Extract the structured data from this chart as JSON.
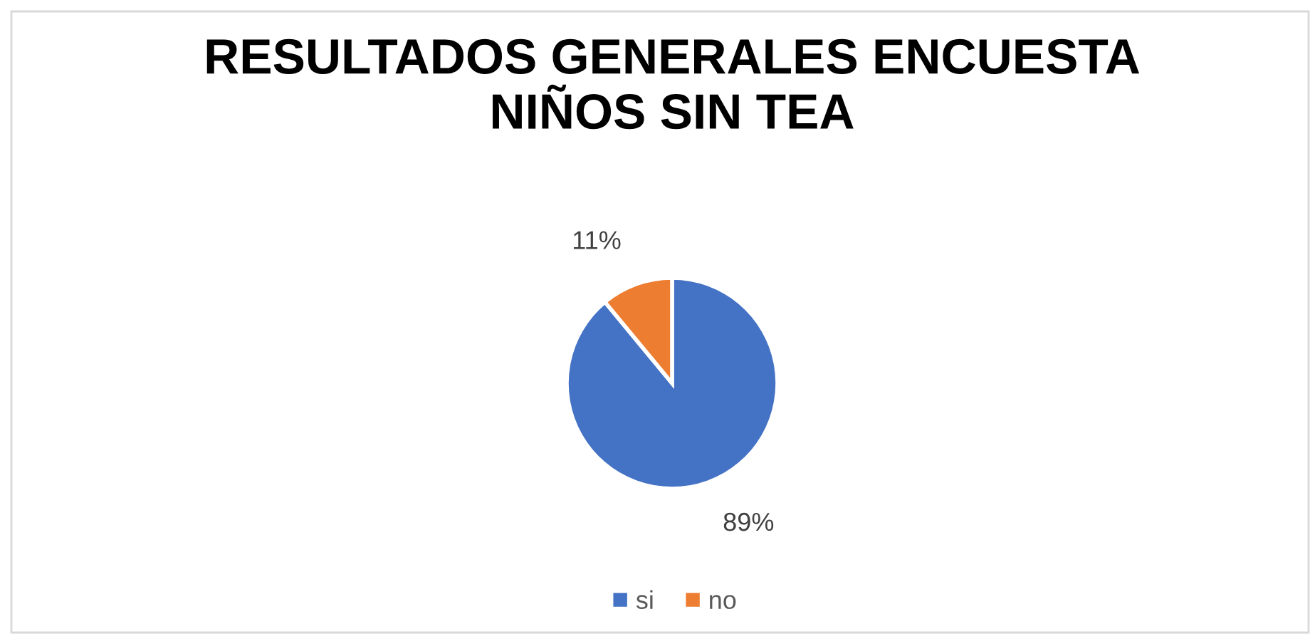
{
  "chart_data": {
    "type": "pie",
    "title": "RESULTADOS GENERALES ENCUESTA\nNIÑOS SIN TEA",
    "categories": [
      "si",
      "no"
    ],
    "values": [
      89,
      11
    ],
    "colors": [
      "#4472c4",
      "#ed7d31"
    ],
    "value_labels": [
      "89%",
      "11%"
    ],
    "legend": "bottom"
  }
}
